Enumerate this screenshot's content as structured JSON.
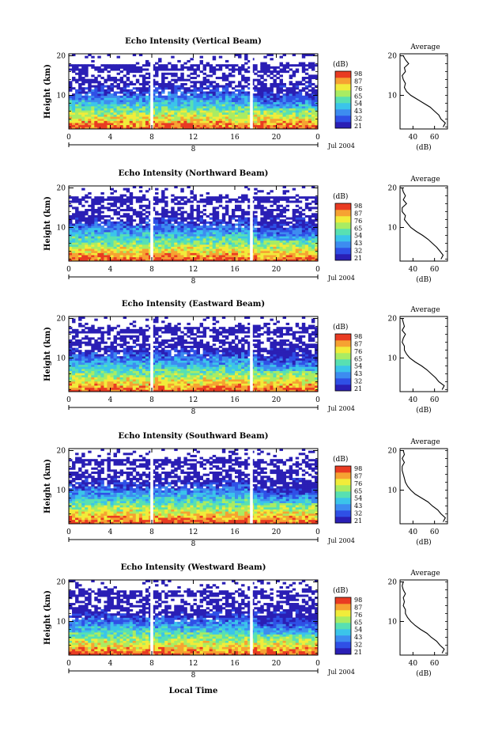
{
  "colors": {
    "colormap": [
      "#2a1fb5",
      "#2f50e6",
      "#3d8cf0",
      "#3bc4ea",
      "#58e0b2",
      "#a9ec63",
      "#f1ec3a",
      "#f6a232",
      "#e93b22"
    ],
    "missing": "#ffffff",
    "line": "#000000"
  },
  "xaxis_label": "Local Time",
  "date_label": "Jul 2004",
  "colorbar_unit": "(dB)",
  "colorbar_ticks": [
    "98",
    "87",
    "76",
    "65",
    "54",
    "43",
    "32",
    "21"
  ],
  "chart_data": [
    {
      "type": "heatmap",
      "title": "Echo Intensity (Vertical Beam)",
      "ylabel": "Height (km)",
      "xlabel": "",
      "x_ticks": [
        "0",
        "4",
        "8",
        "12",
        "16",
        "20",
        "0"
      ],
      "x_range": [
        0,
        24
      ],
      "y_ticks": [
        "20",
        "10"
      ],
      "y_range": [
        1.5,
        20.5
      ],
      "date_marker": "8",
      "value_range": [
        21,
        98
      ],
      "gaps_hours": [
        8.0,
        17.6
      ],
      "profile": {
        "title": "Average",
        "xlabel": "(dB)",
        "x_ticks": [
          "40",
          "60"
        ],
        "x_range": [
          28,
          72
        ],
        "y_ticks": [
          "20",
          "10"
        ],
        "height_km": [
          2,
          3,
          4,
          5,
          6,
          7,
          8,
          9,
          10,
          11,
          12,
          13,
          14,
          15,
          16,
          17,
          18,
          19,
          20
        ],
        "db": [
          68,
          70,
          66,
          64,
          60,
          56,
          50,
          44,
          38,
          34,
          32,
          33,
          31,
          30,
          33,
          32,
          36,
          33,
          31
        ]
      }
    },
    {
      "type": "heatmap",
      "title": "Echo Intensity (Northward Beam)",
      "ylabel": "Height (km)",
      "xlabel": "",
      "x_ticks": [
        "0",
        "4",
        "8",
        "12",
        "16",
        "20",
        "0"
      ],
      "x_range": [
        0,
        24
      ],
      "y_ticks": [
        "20",
        "10"
      ],
      "y_range": [
        1.5,
        20.5
      ],
      "date_marker": "8",
      "value_range": [
        21,
        98
      ],
      "gaps_hours": [
        8.0,
        17.6
      ],
      "profile": {
        "title": "Average",
        "xlabel": "(dB)",
        "x_ticks": [
          "40",
          "60"
        ],
        "x_range": [
          28,
          72
        ],
        "y_ticks": [
          "20",
          "10"
        ],
        "height_km": [
          2,
          3,
          4,
          5,
          6,
          7,
          8,
          9,
          10,
          11,
          12,
          13,
          14,
          15,
          16,
          17,
          18,
          19,
          20
        ],
        "db": [
          66,
          68,
          65,
          62,
          58,
          54,
          49,
          43,
          38,
          35,
          32,
          33,
          30,
          30,
          34,
          31,
          33,
          31,
          30
        ]
      }
    },
    {
      "type": "heatmap",
      "title": "Echo Intensity (Eastward Beam)",
      "ylabel": "Height (km)",
      "xlabel": "",
      "x_ticks": [
        "0",
        "4",
        "8",
        "12",
        "16",
        "20",
        "0"
      ],
      "x_range": [
        0,
        24
      ],
      "y_ticks": [
        "20",
        "10"
      ],
      "y_range": [
        1.5,
        20.5
      ],
      "date_marker": "8",
      "value_range": [
        21,
        98
      ],
      "gaps_hours": [
        8.0,
        17.6
      ],
      "profile": {
        "title": "Average",
        "xlabel": "(dB)",
        "x_ticks": [
          "40",
          "60"
        ],
        "x_range": [
          28,
          72
        ],
        "y_ticks": [
          "20",
          "10"
        ],
        "height_km": [
          2,
          3,
          4,
          5,
          6,
          7,
          8,
          9,
          10,
          11,
          12,
          13,
          14,
          15,
          16,
          17,
          18,
          19,
          20
        ],
        "db": [
          67,
          69,
          64,
          61,
          57,
          53,
          48,
          42,
          37,
          34,
          32,
          32,
          30,
          31,
          33,
          30,
          32,
          31,
          30
        ]
      }
    },
    {
      "type": "heatmap",
      "title": "Echo Intensity (Southward Beam)",
      "ylabel": "Height (km)",
      "xlabel": "",
      "x_ticks": [
        "0",
        "4",
        "8",
        "12",
        "16",
        "20",
        "0"
      ],
      "x_range": [
        0,
        24
      ],
      "y_ticks": [
        "20",
        "10"
      ],
      "y_range": [
        1.5,
        20.5
      ],
      "date_marker": "8",
      "value_range": [
        21,
        98
      ],
      "gaps_hours": [
        8.0,
        17.6
      ],
      "profile": {
        "title": "Average",
        "xlabel": "(dB)",
        "x_ticks": [
          "40",
          "60"
        ],
        "x_range": [
          28,
          72
        ],
        "y_ticks": [
          "20",
          "10"
        ],
        "height_km": [
          2,
          3,
          4,
          5,
          6,
          7,
          8,
          9,
          10,
          11,
          12,
          13,
          14,
          15,
          16,
          17,
          18,
          19,
          20
        ],
        "db": [
          68,
          70,
          66,
          63,
          58,
          54,
          48,
          42,
          38,
          35,
          33,
          32,
          31,
          30,
          30,
          32,
          30,
          32,
          31
        ]
      }
    },
    {
      "type": "heatmap",
      "title": "Echo Intensity (Westward Beam)",
      "ylabel": "Height (km)",
      "xlabel": "Local Time",
      "x_ticks": [
        "0",
        "4",
        "8",
        "12",
        "16",
        "20",
        "0"
      ],
      "x_range": [
        0,
        24
      ],
      "y_ticks": [
        "20",
        "10"
      ],
      "y_range": [
        1.5,
        20.5
      ],
      "date_marker": "8",
      "value_range": [
        21,
        98
      ],
      "gaps_hours": [
        8.0,
        17.6
      ],
      "profile": {
        "title": "Average",
        "xlabel": "(dB)",
        "x_ticks": [
          "40",
          "60"
        ],
        "x_range": [
          28,
          72
        ],
        "y_ticks": [
          "20",
          "10"
        ],
        "height_km": [
          2,
          3,
          4,
          5,
          6,
          7,
          8,
          9,
          10,
          11,
          12,
          13,
          14,
          15,
          16,
          17,
          18,
          19,
          20
        ],
        "db": [
          67,
          69,
          65,
          62,
          57,
          53,
          47,
          42,
          38,
          35,
          33,
          33,
          31,
          32,
          31,
          33,
          31,
          30,
          31
        ]
      }
    }
  ]
}
